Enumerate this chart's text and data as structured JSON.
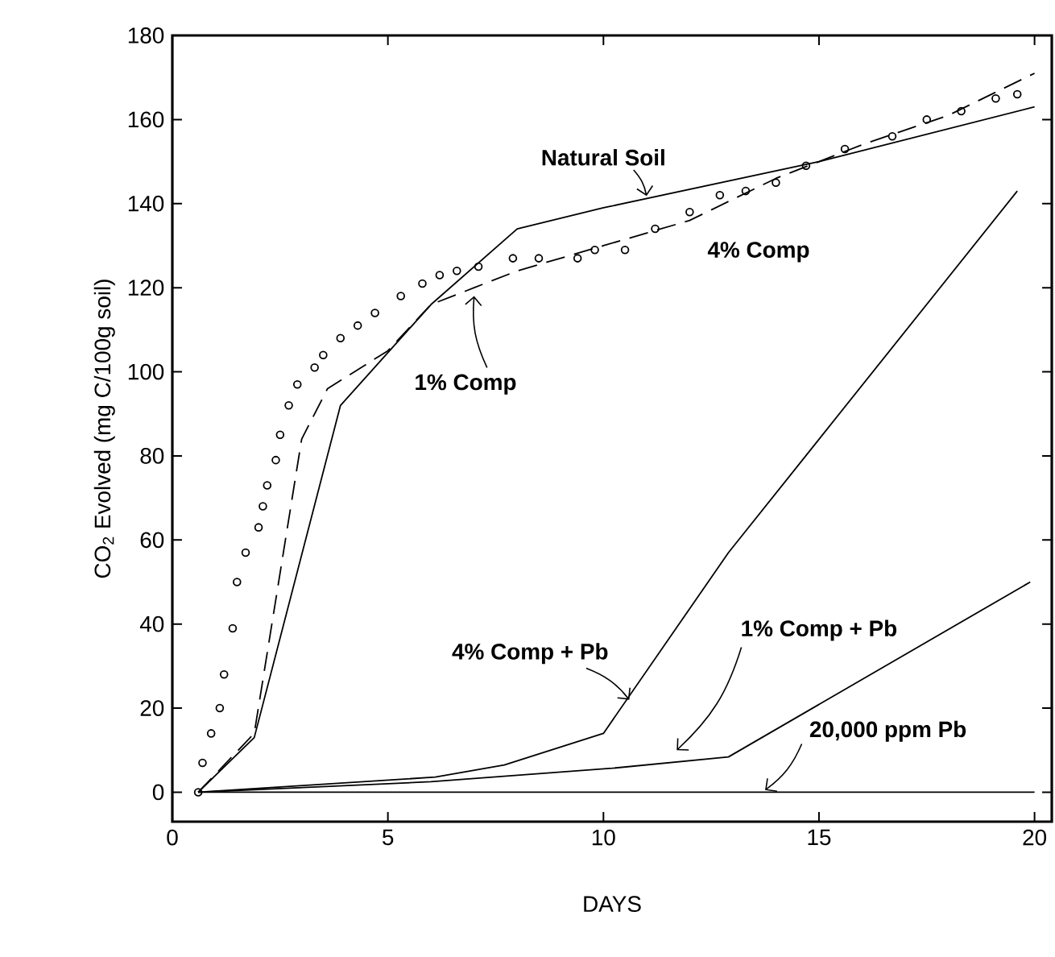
{
  "chart_data": {
    "type": "line",
    "xlabel": "DAYS",
    "ylabel": "CO$_{2}$ Evolved (mg C/100g soil)",
    "xlim": [
      0,
      20.4
    ],
    "ylim": [
      -7,
      180
    ],
    "xticks": [
      0,
      5,
      10,
      15,
      20
    ],
    "yticks": [
      0,
      20,
      40,
      60,
      80,
      100,
      120,
      140,
      160,
      180
    ],
    "grid": false,
    "legend": false,
    "series": [
      {
        "name": "Natural Soil",
        "color": "#000000",
        "line_style": "solid",
        "marker": "none",
        "x": [
          0.6,
          1.9,
          3.9,
          6,
          8,
          10,
          15,
          20
        ],
        "values": [
          0,
          13,
          92,
          116,
          134,
          139,
          150,
          163
        ]
      },
      {
        "name": "4% Comp",
        "type": "scatter",
        "color": "#000000",
        "marker": "circle",
        "x": [
          0.6,
          0.7,
          0.9,
          1.1,
          1.2,
          1.4,
          1.5,
          1.7,
          2.0,
          2.1,
          2.2,
          2.4,
          2.5,
          2.7,
          2.9,
          3.3,
          3.5,
          3.9,
          4.3,
          4.7,
          5.3,
          5.8,
          6.2,
          6.6,
          7.1,
          7.9,
          8.5,
          9.4,
          9.8,
          10.5,
          11.2,
          12.0,
          12.7,
          13.3,
          14.0,
          14.7,
          15.6,
          16.7,
          17.5,
          18.3,
          19.1,
          19.6
        ],
        "values": [
          0,
          7,
          14,
          20,
          28,
          39,
          50,
          57,
          63,
          68,
          73,
          79,
          85,
          92,
          97,
          101,
          104,
          108,
          111,
          114,
          118,
          121,
          123,
          124,
          125,
          127,
          127,
          127,
          129,
          129,
          134,
          138,
          142,
          143,
          145,
          149,
          153,
          156,
          160,
          162,
          165,
          166
        ]
      },
      {
        "name": "1% Comp",
        "color": "#000000",
        "line_style": "dashed",
        "marker": "none",
        "x": [
          0.6,
          1.9,
          3.0,
          3.6,
          5,
          6,
          7,
          8,
          10,
          12,
          14,
          16,
          18,
          20
        ],
        "values": [
          0,
          14,
          84,
          96,
          105,
          116,
          120,
          124,
          130,
          136,
          146,
          154,
          161,
          171
        ]
      },
      {
        "name": "4% Comp + Pb",
        "color": "#000000",
        "line_style": "solid",
        "marker": "none",
        "x": [
          0.6,
          6.1,
          7.7,
          10.0,
          12.9,
          19.6
        ],
        "values": [
          0,
          3.6,
          6.5,
          14,
          57,
          143
        ]
      },
      {
        "name": "1% Comp + Pb",
        "color": "#000000",
        "line_style": "solid",
        "marker": "none",
        "x": [
          0.6,
          6,
          10.2,
          12.9,
          19.9
        ],
        "values": [
          0,
          2.5,
          5.7,
          8.4,
          50
        ]
      },
      {
        "name": "20,000 ppm Pb",
        "color": "#000000",
        "line_style": "solid",
        "marker": "none",
        "x": [
          0.6,
          20
        ],
        "values": [
          0,
          0
        ]
      }
    ]
  }
}
